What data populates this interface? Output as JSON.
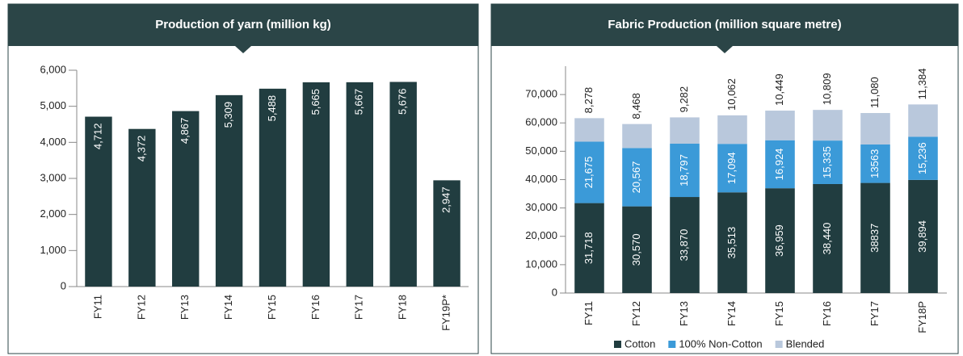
{
  "chart_data": [
    {
      "type": "bar",
      "title": "Production of yarn (million kg)",
      "categories": [
        "FY11",
        "FY12",
        "FY13",
        "FY14",
        "FY15",
        "FY16",
        "FY17",
        "FY18",
        "FY19P*"
      ],
      "values": [
        4712,
        4372,
        4867,
        5309,
        5488,
        5665,
        5667,
        5676,
        2947
      ],
      "value_labels": [
        "4,712",
        "4,372",
        "4,867",
        "5,309",
        "5,488",
        "5,665",
        "5,667",
        "5,676",
        "2,947"
      ],
      "color": "#213d40",
      "ylim": [
        0,
        6000
      ],
      "yticks": [
        0,
        {
          "value": 1000,
          "label": "1,000"
        },
        {
          "value": 2000,
          "label": "2,000"
        },
        {
          "value": 3000,
          "label": "3,000"
        },
        {
          "value": 4000,
          "label": "4,000"
        },
        {
          "value": 5000,
          "label": "5,000"
        },
        {
          "value": 6000,
          "label": "6,000"
        }
      ]
    },
    {
      "type": "stacked_bar",
      "title": "Fabric Production (million square metre)",
      "categories": [
        "FY11",
        "FY12",
        "FY13",
        "FY14",
        "FY15",
        "FY16",
        "FY17",
        "FY18P"
      ],
      "series": [
        {
          "name": "Cotton",
          "color": "#213d40",
          "values": [
            31718,
            30570,
            33870,
            35513,
            36959,
            38440,
            38837,
            39894
          ],
          "value_labels": [
            "31,718",
            "30,570",
            "33,870",
            "35,513",
            "36,959",
            "38,440",
            "38837",
            "39,894"
          ]
        },
        {
          "name": "100% Non-Cotton",
          "color": "#3b9ad8",
          "values": [
            21675,
            20567,
            18797,
            17094,
            16924,
            15335,
            13563,
            15236
          ],
          "value_labels": [
            "21,675",
            "20,567",
            "18,797",
            "17,094",
            "16,924",
            "15,335",
            "13563",
            "15,236"
          ]
        },
        {
          "name": "Blended",
          "color": "#b9c8dc",
          "values": [
            8278,
            8468,
            9282,
            10062,
            10449,
            10809,
            11080,
            11384
          ],
          "value_labels": [
            "8,278",
            "8,468",
            "9,282",
            "10,062",
            "10,449",
            "10,809",
            "11,080",
            "11,384"
          ]
        }
      ],
      "ylim": [
        0,
        80000
      ],
      "yticks": [
        0,
        {
          "value": 10000,
          "label": "10,000"
        },
        {
          "value": 20000,
          "label": "20,000"
        },
        {
          "value": 30000,
          "label": "30,000"
        },
        {
          "value": 40000,
          "label": "40,000"
        },
        {
          "value": 50000,
          "label": "50,000"
        },
        {
          "value": 60000,
          "label": "60,000"
        },
        {
          "value": 70000,
          "label": "70,000"
        }
      ]
    }
  ]
}
